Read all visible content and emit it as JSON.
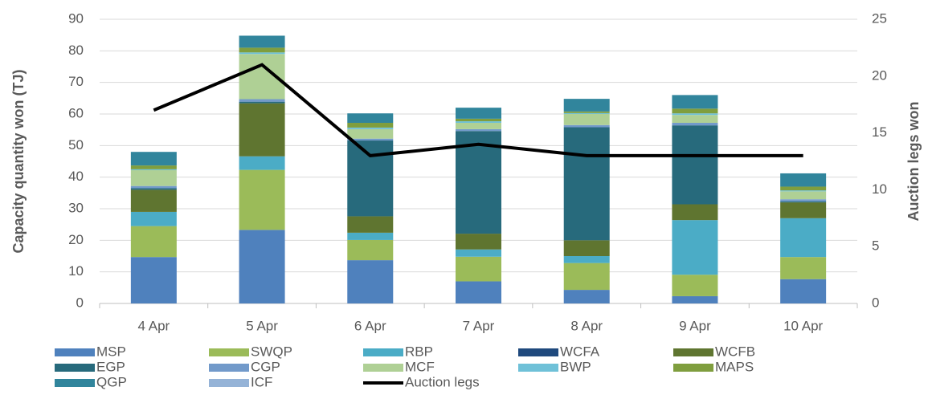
{
  "chart_data": {
    "type": "bar",
    "stacked": true,
    "ylabel": "Capacity quantity won (TJ)",
    "y2label": "Auction legs won",
    "categories": [
      "4 Apr",
      "5 Apr",
      "6 Apr",
      "7 Apr",
      "8 Apr",
      "9 Apr",
      "10 Apr"
    ],
    "ylim": [
      0,
      90
    ],
    "yticks": [
      0,
      10,
      20,
      30,
      40,
      50,
      60,
      70,
      80,
      90
    ],
    "y2lim": [
      0,
      25
    ],
    "y2ticks": [
      0,
      5,
      10,
      15,
      20,
      25
    ],
    "grid": true,
    "legend": "bottom",
    "series": [
      {
        "name": "MSP",
        "color": "#4f81bd",
        "values": [
          14.7,
          23.3,
          13.7,
          7,
          4.3,
          2.3,
          7.7
        ]
      },
      {
        "name": "SWQP",
        "color": "#9bbb59",
        "values": [
          9.8,
          19,
          6.4,
          7.8,
          8.5,
          6.8,
          7
        ]
      },
      {
        "name": "RBP",
        "color": "#4bacc6",
        "values": [
          4.5,
          4.3,
          2.3,
          2.3,
          2.2,
          17.3,
          12.3
        ]
      },
      {
        "name": "WCFA",
        "color": "#1f497d",
        "values": [
          0,
          0,
          0,
          0,
          0,
          0,
          0
        ]
      },
      {
        "name": "WCFB",
        "color": "#5f7530",
        "values": [
          7,
          16.8,
          5.2,
          5,
          5,
          5,
          5
        ]
      },
      {
        "name": "EGP",
        "color": "#276a7c",
        "values": [
          0.5,
          0.5,
          24,
          32.5,
          35.8,
          25,
          0.3
        ]
      },
      {
        "name": "CGP",
        "color": "#729aca",
        "values": [
          0.7,
          0.8,
          0.6,
          0.6,
          0.7,
          0.8,
          0.7
        ]
      },
      {
        "name": "MCF",
        "color": "#afd095",
        "values": [
          5,
          14.3,
          3,
          2,
          3.5,
          2.5,
          2.5
        ]
      },
      {
        "name": "BWP",
        "color": "#6fc1d8",
        "values": [
          0.3,
          0.5,
          0.5,
          0.5,
          0.3,
          0.5,
          0.3
        ]
      },
      {
        "name": "MAPS",
        "color": "#7f9e3e",
        "values": [
          1.2,
          1.5,
          1.5,
          0.8,
          0.5,
          1.5,
          1.2
        ]
      },
      {
        "name": "QGP",
        "color": "#31859c",
        "values": [
          4.3,
          3.8,
          3,
          3.5,
          4,
          4.3,
          4.2
        ]
      },
      {
        "name": "ICF",
        "color": "#95b3d7",
        "values": [
          0,
          0,
          0,
          0,
          0,
          0,
          0
        ]
      },
      {
        "name": "Auction legs",
        "color": "#000000",
        "type": "line",
        "axis": "y2",
        "values": [
          17,
          21,
          13,
          14,
          13,
          13,
          13
        ]
      }
    ]
  }
}
